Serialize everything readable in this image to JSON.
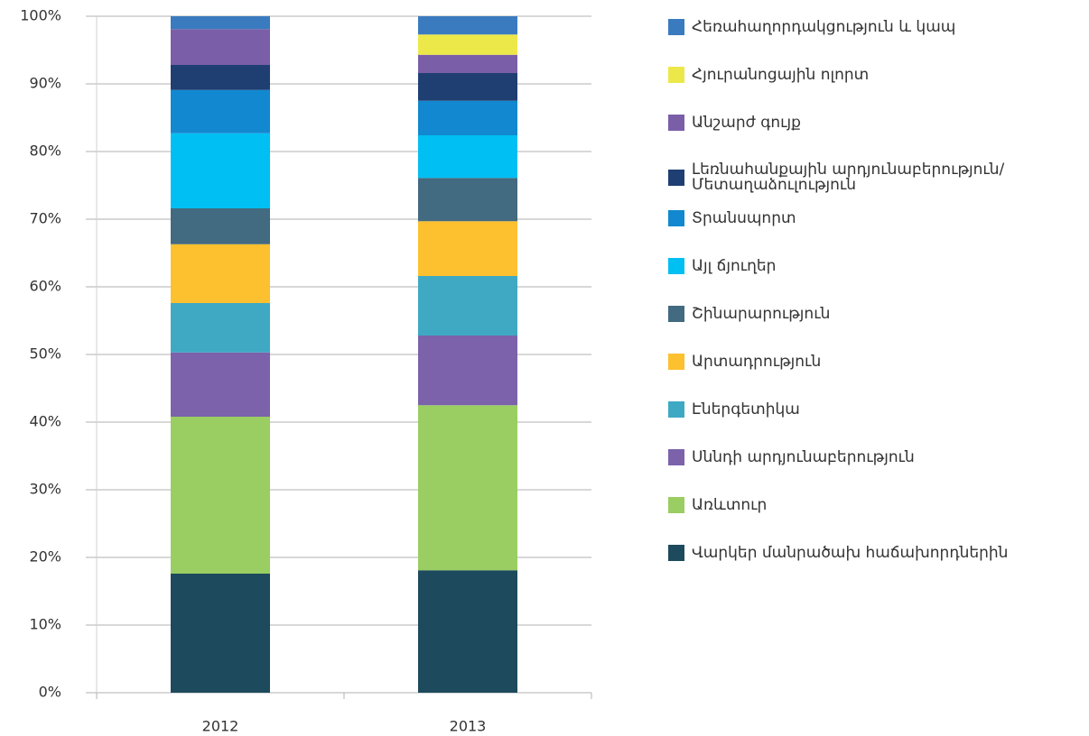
{
  "chart_data": {
    "type": "stacked_bar",
    "categories": [
      "2012",
      "2013"
    ],
    "ylim": [
      0,
      100
    ],
    "yticks": [
      {
        "value": 0,
        "label": "0%"
      },
      {
        "value": 10,
        "label": "10%"
      },
      {
        "value": 20,
        "label": "20%"
      },
      {
        "value": 30,
        "label": "30%"
      },
      {
        "value": 40,
        "label": "40%"
      },
      {
        "value": 50,
        "label": "50%"
      },
      {
        "value": 60,
        "label": "60%"
      },
      {
        "value": 70,
        "label": "70%"
      },
      {
        "value": 80,
        "label": "80%"
      },
      {
        "value": 90,
        "label": "90%"
      },
      {
        "value": 100,
        "label": "100%"
      }
    ],
    "grid": true,
    "legend": "right",
    "series": [
      {
        "name": "Վարկեր մանրածախ հաճախորդներին",
        "color": "#1d4a5c",
        "values": [
          17.6,
          18.1
        ]
      },
      {
        "name": "Առևտուր",
        "color": "#9acd62",
        "values": [
          23.2,
          24.4
        ]
      },
      {
        "name": "Սննդի արդյունաբերություն",
        "color": "#7b62ab",
        "values": [
          9.5,
          10.3
        ]
      },
      {
        "name": "Էներգետիկա",
        "color": "#3fa9c4",
        "values": [
          7.3,
          8.8
        ]
      },
      {
        "name": "Արտադրություն",
        "color": "#fdc02f",
        "values": [
          8.7,
          8.1
        ]
      },
      {
        "name": "Շինարարություն",
        "color": "#426a80",
        "values": [
          5.3,
          6.4
        ]
      },
      {
        "name": "Այլ ճյուղեր",
        "color": "#00bff3",
        "values": [
          11.1,
          6.3
        ]
      },
      {
        "name": "Տրանսպորտ",
        "color": "#1188cf",
        "values": [
          6.4,
          5.1
        ]
      },
      {
        "name": "Լեռնահանքային արդյունաբերություն/ Մետաղաձուլություն",
        "color": "#1f3f73",
        "values": [
          3.7,
          4.1
        ]
      },
      {
        "name": "Անշարժ գույք",
        "color": "#7b5ea8",
        "values": [
          5.3,
          2.7
        ]
      },
      {
        "name": "Հյուրանոցային ոլորտ",
        "color": "#ede84a",
        "values": [
          0,
          3.0
        ]
      },
      {
        "name": "Հեռահաղորդակցություն և կապ",
        "color": "#3a7bc0",
        "values": [
          1.9,
          2.7
        ]
      }
    ]
  }
}
